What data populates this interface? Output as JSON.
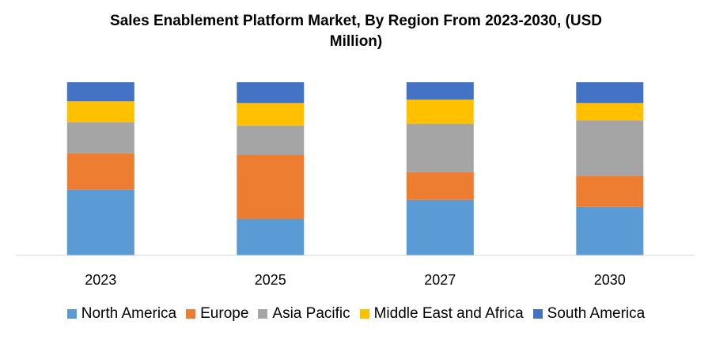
{
  "chart_data": {
    "type": "bar",
    "stacked": true,
    "title_line1": "Sales Enablement Platform Market, By Region From 2023-2030, (USD",
    "title_line2": "Million)",
    "categories": [
      "2023",
      "2025",
      "2027",
      "2030"
    ],
    "series": [
      {
        "name": "North America",
        "color": "#5B9BD5",
        "values": [
          38,
          21,
          32,
          28
        ]
      },
      {
        "name": "Europe",
        "color": "#ED7D31",
        "values": [
          21,
          37,
          16,
          18
        ]
      },
      {
        "name": "Asia Pacific",
        "color": "#A5A5A5",
        "values": [
          18,
          17,
          28,
          32
        ]
      },
      {
        "name": "Middle East and Africa",
        "color": "#FFC000",
        "values": [
          12,
          13,
          14,
          10
        ]
      },
      {
        "name": "South America",
        "color": "#4472C4",
        "values": [
          11,
          12,
          10,
          12
        ]
      }
    ],
    "ylim": [
      0,
      100
    ],
    "grid": false,
    "legend_position": "bottom"
  }
}
